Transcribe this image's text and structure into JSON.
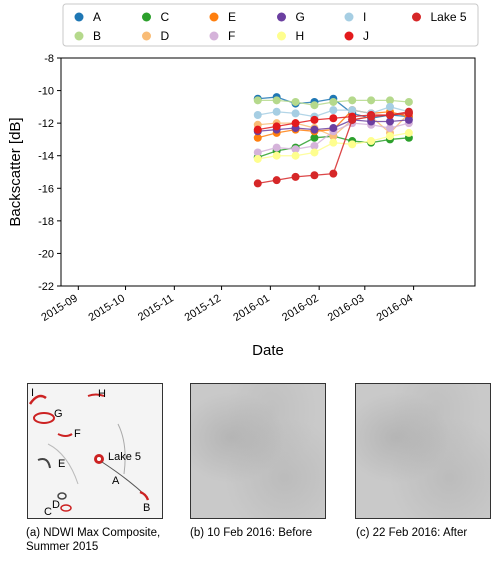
{
  "chart_data": {
    "type": "line",
    "xlabel": "Date",
    "ylabel": "Backscatter [dB]",
    "ylim": [
      -22,
      -8
    ],
    "yticks": [
      -22,
      -20,
      -18,
      -16,
      -14,
      -12,
      -10,
      -8
    ],
    "xticks": [
      "2015-09",
      "2015-10",
      "2015-11",
      "2015-12",
      "2016-01",
      "2016-02",
      "2016-03",
      "2016-04"
    ],
    "xlim": [
      "2015-08-21",
      "2016-05-10"
    ],
    "grid": false,
    "legend_position": "top",
    "x": [
      "2015-12-24",
      "2016-01-05",
      "2016-01-17",
      "2016-01-29",
      "2016-02-10",
      "2016-02-22",
      "2016-03-05",
      "2016-03-17",
      "2016-03-29"
    ],
    "series": [
      {
        "name": "A",
        "color": "#1f77b4",
        "values": [
          -10.5,
          -10.4,
          -10.8,
          -10.7,
          -10.5,
          -11.4,
          -11.7,
          -11.5,
          -11.6
        ]
      },
      {
        "name": "B",
        "color": "#b5d98c",
        "values": [
          -10.6,
          -10.6,
          -10.7,
          -10.9,
          -10.7,
          -10.6,
          -10.6,
          -10.6,
          -10.7
        ]
      },
      {
        "name": "C",
        "color": "#2ca02c",
        "values": [
          -14.1,
          -13.7,
          -13.5,
          -12.9,
          -12.8,
          -13.1,
          -13.2,
          -13.0,
          -12.9
        ]
      },
      {
        "name": "D",
        "color": "#f9bc76",
        "values": [
          -12.1,
          -12.0,
          -12.0,
          -12.3,
          -12.8,
          -11.8,
          -11.6,
          -12.6,
          -11.4
        ]
      },
      {
        "name": "E",
        "color": "#ff7f0e",
        "values": [
          -12.9,
          -12.6,
          -12.4,
          -12.5,
          -12.4,
          -11.2,
          -11.4,
          -11.3,
          -11.6
        ]
      },
      {
        "name": "F",
        "color": "#d5b3da",
        "values": [
          -13.8,
          -13.5,
          -13.6,
          -13.4,
          -12.5,
          -12.0,
          -12.1,
          -12.3,
          -12.0
        ]
      },
      {
        "name": "G",
        "color": "#6b3fa0",
        "values": [
          -12.5,
          -12.4,
          -12.3,
          -12.4,
          -12.3,
          -11.8,
          -11.9,
          -11.9,
          -11.8
        ]
      },
      {
        "name": "H",
        "color": "#fefe8e",
        "values": [
          -14.2,
          -14.0,
          -14.0,
          -13.8,
          -13.2,
          -13.3,
          -13.1,
          -12.8,
          -12.6
        ]
      },
      {
        "name": "I",
        "color": "#a6cee3",
        "values": [
          -11.5,
          -11.3,
          -11.4,
          -11.6,
          -11.2,
          -11.2,
          -11.4,
          -11.0,
          -11.3
        ]
      },
      {
        "name": "J",
        "color": "#e31a1c",
        "values": [
          -12.4,
          -12.2,
          -12.0,
          -11.8,
          -11.7,
          -11.6,
          -11.5,
          -11.5,
          -11.4
        ]
      },
      {
        "name": "Lake 5",
        "color": "#d62728",
        "values": [
          -15.7,
          -15.5,
          -15.3,
          -15.2,
          -15.1,
          -11.8,
          -11.6,
          -11.5,
          -11.3
        ]
      }
    ]
  },
  "legend": {
    "entries": [
      "A",
      "C",
      "E",
      "G",
      "I",
      "Lake 5",
      "B",
      "D",
      "F",
      "H",
      "J"
    ]
  },
  "images": {
    "panels": [
      {
        "caption_line1": "(a) NDWI Max Composite,",
        "caption_line2": "Summer 2015",
        "labels": [
          "I",
          "H",
          "G",
          "F",
          "E",
          "Lake 5",
          "A",
          "D",
          "B",
          "C"
        ]
      },
      {
        "caption_line1": "(b) 10 Feb 2016: Before",
        "caption_line2": ""
      },
      {
        "caption_line1": "(c) 22 Feb 2016: After",
        "caption_line2": ""
      }
    ]
  }
}
